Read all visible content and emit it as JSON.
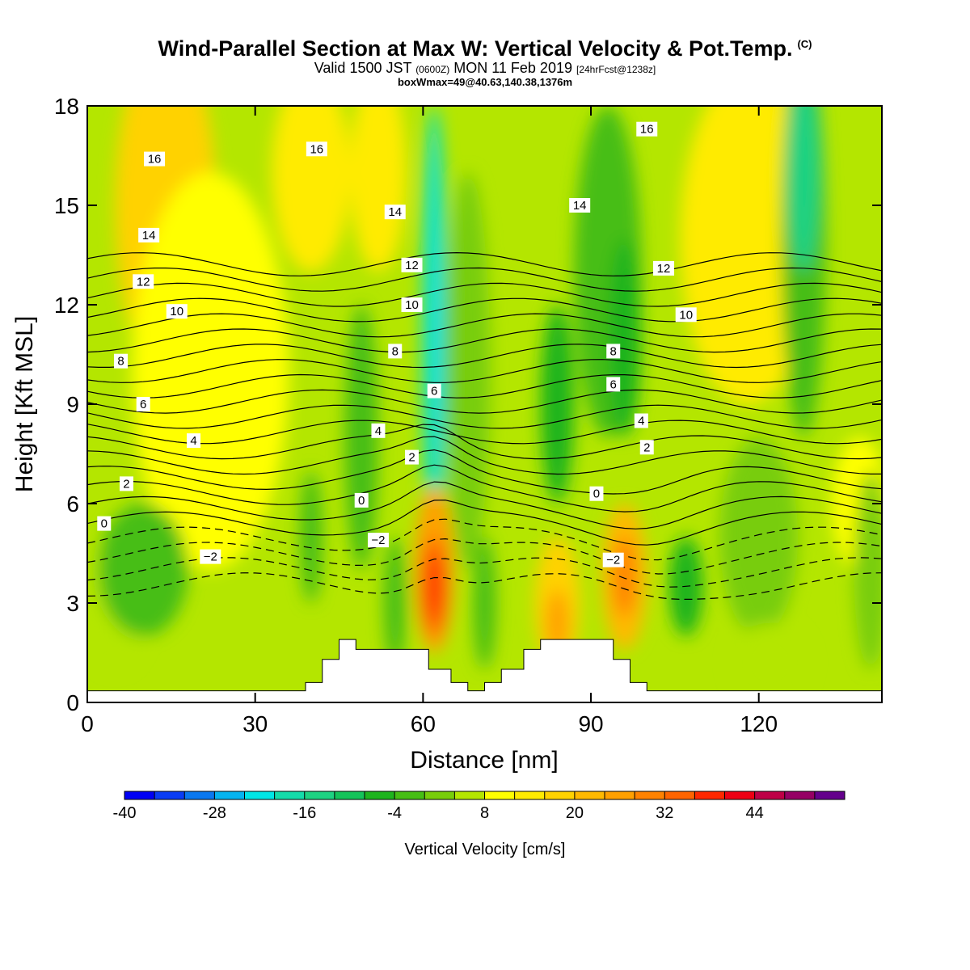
{
  "header": {
    "title": "Wind-Parallel Section at Max W: Vertical Velocity & Pot.Temp.",
    "copyright": "(C)",
    "valid_prefix": "Valid 1500 JST",
    "valid_utc": "(0600Z)",
    "valid_suffix": "MON 11 Feb 2019",
    "forecast": "[24hrFcst@1238z]",
    "box_info": "boxWmax=49@40.63,140.38,1376m"
  },
  "chart_data": {
    "type": "heatmap",
    "xlabel": "Distance [nm]",
    "ylabel": "Height [Kft MSL]",
    "xlim": [
      0,
      142
    ],
    "ylim": [
      0,
      18
    ],
    "x_ticks": [
      0,
      30,
      60,
      90,
      120
    ],
    "y_ticks": [
      0,
      3,
      6,
      9,
      12,
      15,
      18
    ],
    "colorbar": {
      "label": "Vertical Velocity [cm/s]",
      "tick_labels": [
        -40,
        -28,
        -16,
        -4,
        8,
        20,
        32,
        44
      ],
      "levels": [
        -40,
        -36,
        -32,
        -28,
        -24,
        -20,
        -16,
        -12,
        -8,
        -4,
        0,
        4,
        8,
        12,
        16,
        20,
        24,
        28,
        32,
        36,
        40,
        44,
        48,
        52
      ],
      "colors": [
        "#0000f5",
        "#0a3cf5",
        "#0a78f0",
        "#05b4f0",
        "#00e6e6",
        "#14dcaa",
        "#1ed282",
        "#14c35a",
        "#1eb41e",
        "#46be14",
        "#78cd0a",
        "#b4e600",
        "#ffff00",
        "#ffeb00",
        "#ffd200",
        "#ffb900",
        "#ffa000",
        "#ff8200",
        "#ff6400",
        "#ff2800",
        "#ee0014",
        "#be0046",
        "#960064",
        "#64008c"
      ]
    },
    "contour_labels": [
      {
        "x": 12,
        "y": 16.4,
        "t": "16"
      },
      {
        "x": 41,
        "y": 16.7,
        "t": "16"
      },
      {
        "x": 100,
        "y": 17.3,
        "t": "16"
      },
      {
        "x": 55,
        "y": 14.8,
        "t": "14"
      },
      {
        "x": 88,
        "y": 15.0,
        "t": "14"
      },
      {
        "x": 11,
        "y": 14.1,
        "t": "14"
      },
      {
        "x": 58,
        "y": 13.2,
        "t": "12"
      },
      {
        "x": 103,
        "y": 13.1,
        "t": "12"
      },
      {
        "x": 10,
        "y": 12.7,
        "t": "12"
      },
      {
        "x": 58,
        "y": 12.0,
        "t": "10"
      },
      {
        "x": 16,
        "y": 11.8,
        "t": "10"
      },
      {
        "x": 107,
        "y": 11.7,
        "t": "10"
      },
      {
        "x": 55,
        "y": 10.6,
        "t": "8"
      },
      {
        "x": 94,
        "y": 10.6,
        "t": "8"
      },
      {
        "x": 6,
        "y": 10.3,
        "t": "8"
      },
      {
        "x": 62,
        "y": 9.4,
        "t": "6"
      },
      {
        "x": 94,
        "y": 9.6,
        "t": "6"
      },
      {
        "x": 10,
        "y": 9.0,
        "t": "6"
      },
      {
        "x": 52,
        "y": 8.2,
        "t": "4"
      },
      {
        "x": 99,
        "y": 8.5,
        "t": "4"
      },
      {
        "x": 19,
        "y": 7.9,
        "t": "4"
      },
      {
        "x": 58,
        "y": 7.4,
        "t": "2"
      },
      {
        "x": 100,
        "y": 7.7,
        "t": "2"
      },
      {
        "x": 7,
        "y": 6.6,
        "t": "2"
      },
      {
        "x": 49,
        "y": 6.1,
        "t": "0"
      },
      {
        "x": 91,
        "y": 6.3,
        "t": "0"
      },
      {
        "x": 3,
        "y": 5.4,
        "t": "0"
      },
      {
        "x": 52,
        "y": 4.9,
        "t": "−2"
      },
      {
        "x": 22,
        "y": 4.4,
        "t": "−2"
      },
      {
        "x": 94,
        "y": 4.3,
        "t": "−2"
      }
    ]
  }
}
